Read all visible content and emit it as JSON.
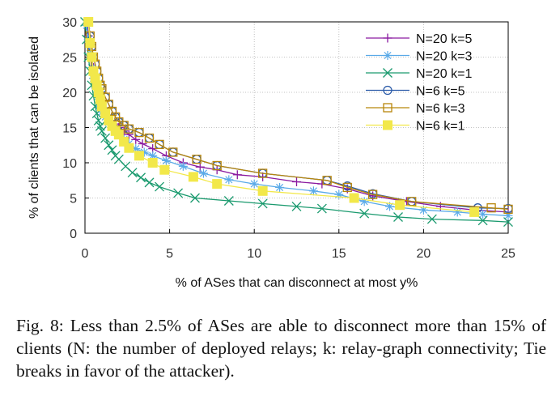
{
  "caption": "Fig. 8: Less than 2.5% of ASes are able to disconnect more than 15% of clients (N: the number of deployed relays; k: relay-graph connectivity; Tie breaks in favor of the attacker).",
  "chart_data": {
    "type": "line",
    "xlabel": "% of ASes that can disconnect at most y%",
    "ylabel": "% of clients that can be isolated",
    "xlim": [
      0,
      25
    ],
    "ylim": [
      0,
      30
    ],
    "xticks": [
      "0",
      "5",
      "10",
      "15",
      "20",
      "25"
    ],
    "yticks": [
      "0",
      "5",
      "10",
      "15",
      "20",
      "25",
      "30"
    ],
    "grid": true,
    "legend_position": "top-right",
    "series": [
      {
        "name": "N=20 k=5",
        "color": "#8a1aa0",
        "marker": "plus",
        "x": [
          0.15,
          0.2,
          0.3,
          0.4,
          0.5,
          0.6,
          0.7,
          0.8,
          0.9,
          1.0,
          1.2,
          1.4,
          1.6,
          1.8,
          2.0,
          2.3,
          2.6,
          3.0,
          3.4,
          4.0,
          4.8,
          5.8,
          6.8,
          7.8,
          9.0,
          10.5,
          12.5,
          14.0,
          15.5,
          17.0,
          19.0,
          21.0,
          23.0,
          25.0
        ],
        "y": [
          29.5,
          28.0,
          26.5,
          25.0,
          23.5,
          22.0,
          21.0,
          20.0,
          19.0,
          18.2,
          17.2,
          16.5,
          16.0,
          15.5,
          15.0,
          14.5,
          14.0,
          13.3,
          12.7,
          12.0,
          11.0,
          10.0,
          9.4,
          9.0,
          8.3,
          8.0,
          7.3,
          7.0,
          6.3,
          5.3,
          4.5,
          3.8,
          3.3,
          3.0
        ]
      },
      {
        "name": "N=20 k=3",
        "color": "#5aaae8",
        "marker": "star",
        "x": [
          0.1,
          0.2,
          0.3,
          0.4,
          0.5,
          0.6,
          0.7,
          0.8,
          0.9,
          1.0,
          1.2,
          1.4,
          1.6,
          1.8,
          2.0,
          2.3,
          2.6,
          3.0,
          3.5,
          4.0,
          4.8,
          5.8,
          7.0,
          8.5,
          10.0,
          11.5,
          13.5,
          15.0,
          16.5,
          18.0,
          20.0,
          22.0,
          23.5,
          25.0
        ],
        "y": [
          29.5,
          27.5,
          25.5,
          23.5,
          22.0,
          21.0,
          20.0,
          19.0,
          18.0,
          17.2,
          16.5,
          15.7,
          15.0,
          14.5,
          14.0,
          13.3,
          12.7,
          12.0,
          11.5,
          11.0,
          10.3,
          9.5,
          8.5,
          7.6,
          7.0,
          6.5,
          6.0,
          5.5,
          4.5,
          3.8,
          3.3,
          3.0,
          2.7,
          2.5
        ]
      },
      {
        "name": "N=20 k=1",
        "color": "#1a9a6e",
        "marker": "x",
        "x": [
          0.0,
          0.1,
          0.2,
          0.3,
          0.4,
          0.5,
          0.6,
          0.7,
          0.8,
          0.9,
          1.0,
          1.2,
          1.4,
          1.6,
          1.8,
          2.0,
          2.4,
          2.8,
          3.3,
          3.8,
          4.4,
          5.5,
          6.5,
          8.5,
          10.5,
          12.5,
          14.0,
          16.5,
          18.5,
          20.5,
          23.5,
          25.0
        ],
        "y": [
          30.0,
          27.5,
          25.0,
          23.0,
          21.0,
          19.5,
          18.0,
          17.0,
          16.0,
          15.2,
          14.5,
          13.5,
          12.5,
          11.8,
          11.0,
          10.5,
          9.5,
          8.6,
          7.9,
          7.2,
          6.6,
          5.7,
          5.0,
          4.6,
          4.2,
          3.8,
          3.5,
          2.8,
          2.3,
          2.0,
          1.8,
          1.6
        ]
      },
      {
        "name": "N=6  k=5",
        "color": "#2a5aa8",
        "marker": "circle",
        "x": [
          0.2,
          0.3,
          0.4,
          0.5,
          0.6,
          0.7,
          0.8,
          0.9,
          1.0,
          1.2,
          1.4,
          1.6,
          1.8,
          2.0,
          2.3,
          2.6,
          3.2,
          3.8,
          4.4,
          5.2,
          6.6,
          7.8,
          10.5,
          14.3,
          15.5,
          17.0,
          19.3,
          23.2,
          25.0
        ],
        "y": [
          30.0,
          28.0,
          26.5,
          25.0,
          24.0,
          23.0,
          22.0,
          21.0,
          20.5,
          19.3,
          18.3,
          17.3,
          16.5,
          15.8,
          15.3,
          14.8,
          14.3,
          13.5,
          12.6,
          11.5,
          10.5,
          9.6,
          8.5,
          7.5,
          6.7,
          5.6,
          4.5,
          3.6,
          3.5
        ]
      },
      {
        "name": "N=6  k=3",
        "color": "#b8860b",
        "marker": "square-open",
        "x": [
          0.2,
          0.3,
          0.4,
          0.5,
          0.6,
          0.7,
          0.8,
          0.9,
          1.0,
          1.2,
          1.4,
          1.6,
          1.8,
          2.0,
          2.3,
          2.6,
          3.2,
          3.8,
          4.4,
          5.2,
          6.6,
          7.8,
          10.5,
          14.3,
          15.5,
          17.0,
          19.3,
          24.0,
          25.0
        ],
        "y": [
          30.0,
          28.0,
          26.5,
          25.0,
          24.0,
          23.0,
          22.0,
          21.0,
          20.5,
          19.3,
          18.3,
          17.3,
          16.5,
          15.8,
          15.3,
          14.8,
          14.3,
          13.5,
          12.6,
          11.5,
          10.5,
          9.6,
          8.5,
          7.5,
          6.5,
          5.5,
          4.5,
          3.6,
          3.4
        ]
      },
      {
        "name": "N=6  k=1",
        "color": "#f2e84a",
        "marker": "square-filled",
        "x": [
          0.2,
          0.3,
          0.4,
          0.5,
          0.6,
          0.7,
          0.8,
          0.9,
          1.0,
          1.2,
          1.4,
          1.6,
          1.8,
          2.0,
          2.3,
          2.6,
          3.2,
          4.0,
          4.7,
          6.4,
          7.8,
          10.5,
          15.9,
          18.6,
          23.0
        ],
        "y": [
          30.0,
          27.0,
          25.0,
          23.0,
          22.0,
          21.0,
          20.0,
          19.0,
          18.0,
          17.0,
          16.0,
          15.2,
          14.5,
          14.0,
          13.0,
          12.1,
          11.0,
          10.0,
          9.0,
          8.0,
          7.0,
          6.0,
          5.0,
          4.0,
          3.0
        ]
      }
    ]
  }
}
